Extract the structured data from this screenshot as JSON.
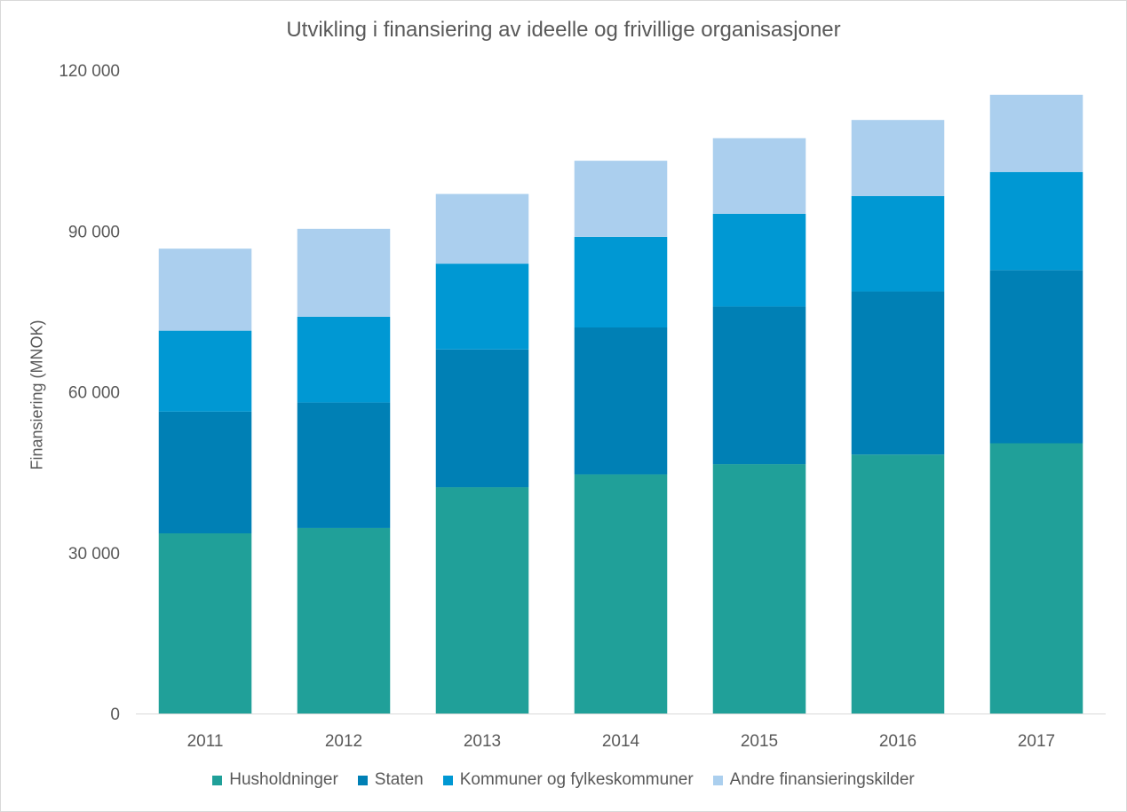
{
  "chart_data": {
    "type": "bar",
    "stacked": true,
    "title": "Utvikling i finansiering av ideelle og  frivillige organisasjoner",
    "xlabel": "",
    "ylabel": "Finansiering (MNOK)",
    "categories": [
      "2011",
      "2012",
      "2013",
      "2014",
      "2015",
      "2016",
      "2017"
    ],
    "ylim": [
      0,
      120000
    ],
    "yticks": [
      0,
      30000,
      60000,
      90000,
      120000
    ],
    "ytick_labels": [
      "0",
      "30 000",
      "60 000",
      "90 000",
      "120 000"
    ],
    "gridlines": false,
    "legend_position": "bottom",
    "series": [
      {
        "name": "Husholdninger",
        "color": "#20a099",
        "values": [
          33600,
          34600,
          42200,
          44600,
          46500,
          48300,
          50400
        ]
      },
      {
        "name": "Staten",
        "color": "#0080b5",
        "values": [
          22700,
          23400,
          25700,
          27400,
          29400,
          30400,
          32300
        ]
      },
      {
        "name": "Kommuner og fylkeskommuner",
        "color": "#0098d3",
        "values": [
          15100,
          16000,
          16000,
          16900,
          17300,
          17800,
          18300
        ]
      },
      {
        "name": "Andre finansieringskilder",
        "color": "#abcfee",
        "values": [
          15300,
          16400,
          13000,
          14200,
          14100,
          14200,
          14400
        ]
      }
    ]
  }
}
